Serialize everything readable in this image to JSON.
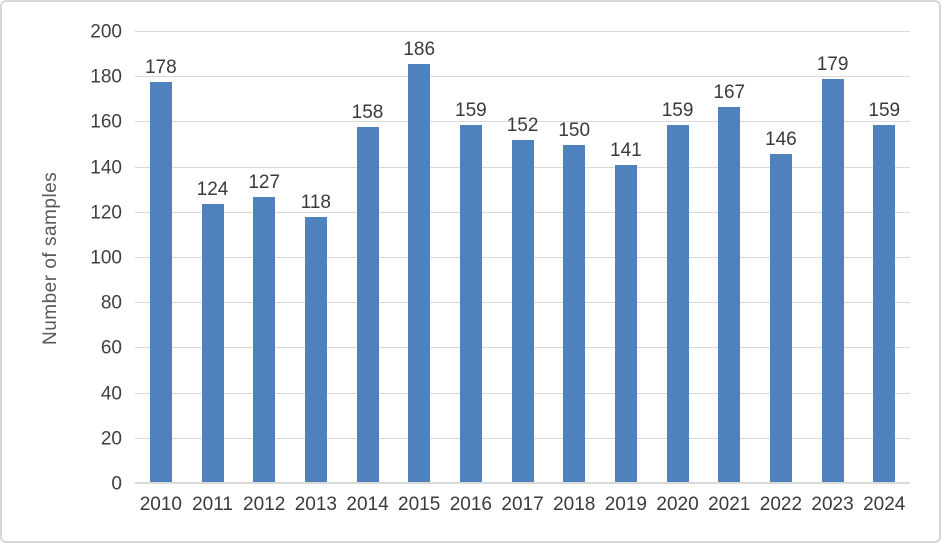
{
  "chart_data": {
    "type": "bar",
    "categories": [
      "2010",
      "2011",
      "2012",
      "2013",
      "2014",
      "2015",
      "2016",
      "2017",
      "2018",
      "2019",
      "2020",
      "2021",
      "2022",
      "2023",
      "2024"
    ],
    "values": [
      178,
      124,
      127,
      118,
      158,
      186,
      159,
      152,
      150,
      141,
      159,
      167,
      146,
      179,
      159
    ],
    "title": "",
    "xlabel": "",
    "ylabel": "Number of samples",
    "ylim": [
      0,
      200
    ],
    "yticks": [
      0,
      20,
      40,
      60,
      80,
      100,
      120,
      140,
      160,
      180,
      200
    ],
    "grid": true,
    "legend": "none",
    "data_labels": true,
    "colors": {
      "bar": "#4f81bd",
      "gridline": "#d9d9d9",
      "tick_label": "#3f3f3f",
      "data_label": "#3a3a3a",
      "axis_title": "#595959",
      "frame_border": "#d7d7d7",
      "background": "#ffffff"
    }
  }
}
